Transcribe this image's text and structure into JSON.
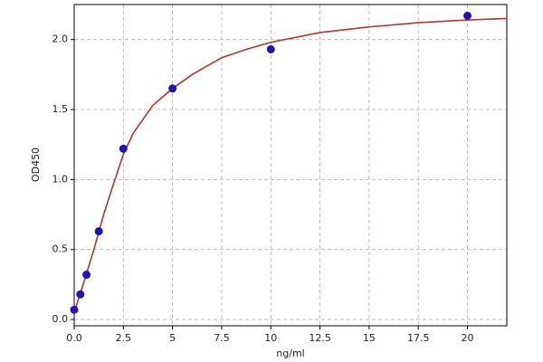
{
  "chart_data": {
    "type": "scatter",
    "xlabel": "ng/ml",
    "ylabel": "OD450",
    "xlim": [
      0,
      22
    ],
    "ylim": [
      -0.045,
      2.25
    ],
    "xticks": [
      {
        "value": 0,
        "label": "0.0"
      },
      2.5,
      5,
      7.5,
      10,
      12.5,
      15,
      17.5,
      20
    ],
    "yticks": [
      {
        "value": 0,
        "label": "0.0"
      },
      0.5,
      {
        "value": 1,
        "label": "1.0"
      },
      1.5,
      {
        "value": 2,
        "label": "2.0"
      }
    ],
    "grid": true,
    "series": [
      {
        "style": "points",
        "color": "#1f14b8",
        "x": [
          0,
          0.3125,
          0.625,
          1.25,
          2.5,
          5,
          10,
          20
        ],
        "values": [
          0.07,
          0.18,
          0.32,
          0.63,
          1.22,
          1.65,
          1.93,
          2.17
        ]
      },
      {
        "style": "line",
        "color": "#c0302a",
        "x": [
          0,
          0.5,
          1,
          1.5,
          2,
          2.5,
          3,
          4,
          5,
          6,
          7.5,
          8.75,
          10,
          12.5,
          15,
          17.5,
          20,
          22
        ],
        "values": [
          0.05,
          0.27,
          0.5,
          0.75,
          0.97,
          1.18,
          1.33,
          1.53,
          1.65,
          1.75,
          1.87,
          1.93,
          1.98,
          2.05,
          2.09,
          2.12,
          2.14,
          2.15
        ]
      }
    ]
  }
}
